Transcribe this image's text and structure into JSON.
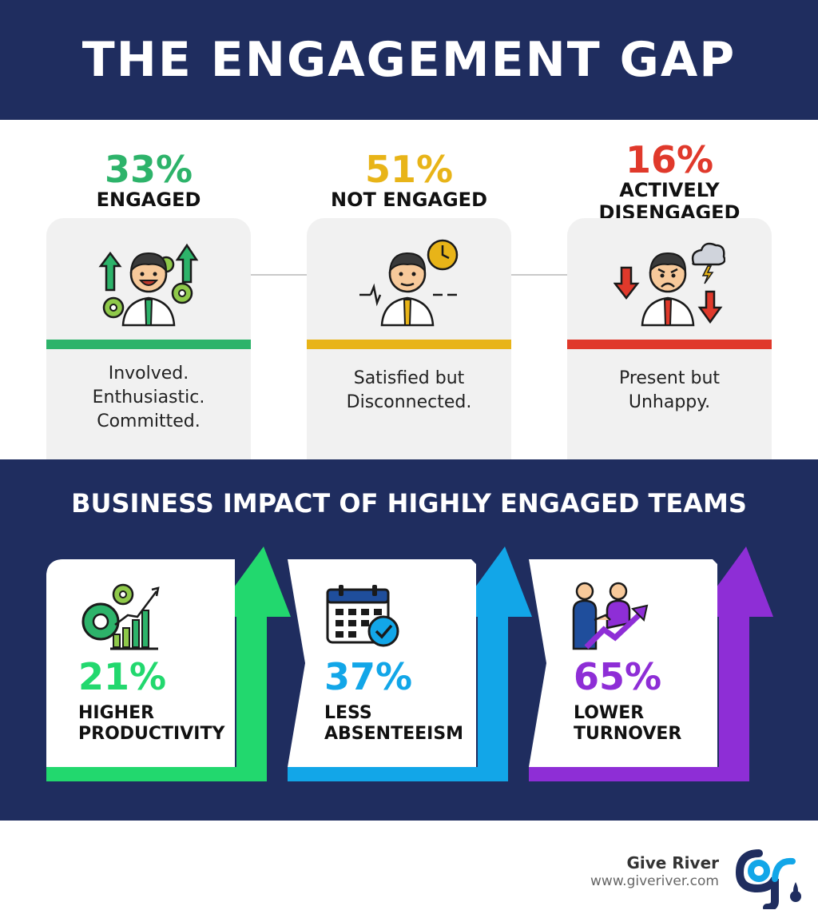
{
  "title": "THE ENGAGEMENT GAP",
  "groups": [
    {
      "pct": "33%",
      "label": [
        "ENGAGED"
      ],
      "desc": [
        "Involved.",
        "Enthusiastic.",
        "Committed."
      ],
      "color": "#2db36a",
      "icon": "engaged-employee-gears-up-arrows"
    },
    {
      "pct": "51%",
      "label": [
        "NOT ENGAGED"
      ],
      "desc": [
        "Satisfied but",
        "Disconnected."
      ],
      "color": "#e8b418",
      "icon": "neutral-employee-clock"
    },
    {
      "pct": "16%",
      "label": [
        "ACTIVELY",
        "DISENGAGED"
      ],
      "desc": [
        "Present but",
        "Unhappy."
      ],
      "color": "#e0392b",
      "icon": "angry-employee-storm-cloud"
    }
  ],
  "impact": {
    "title": "BUSINESS IMPACT OF HIGHLY ENGAGED TEAMS",
    "items": [
      {
        "pct": "21%",
        "label": [
          "HIGHER",
          "PRODUCTIVITY"
        ],
        "color": "#22d86e",
        "icon": "gears-bar-chart-icon"
      },
      {
        "pct": "37%",
        "label": [
          "LESS",
          "ABSENTEEISM"
        ],
        "color": "#12a6e8",
        "icon": "calendar-check-icon"
      },
      {
        "pct": "65%",
        "label": [
          "LOWER",
          "TURNOVER"
        ],
        "color": "#8e2ed6",
        "icon": "handshake-growth-icon"
      }
    ]
  },
  "brand": {
    "name": "Give River",
    "url": "www.giveriver.com"
  }
}
